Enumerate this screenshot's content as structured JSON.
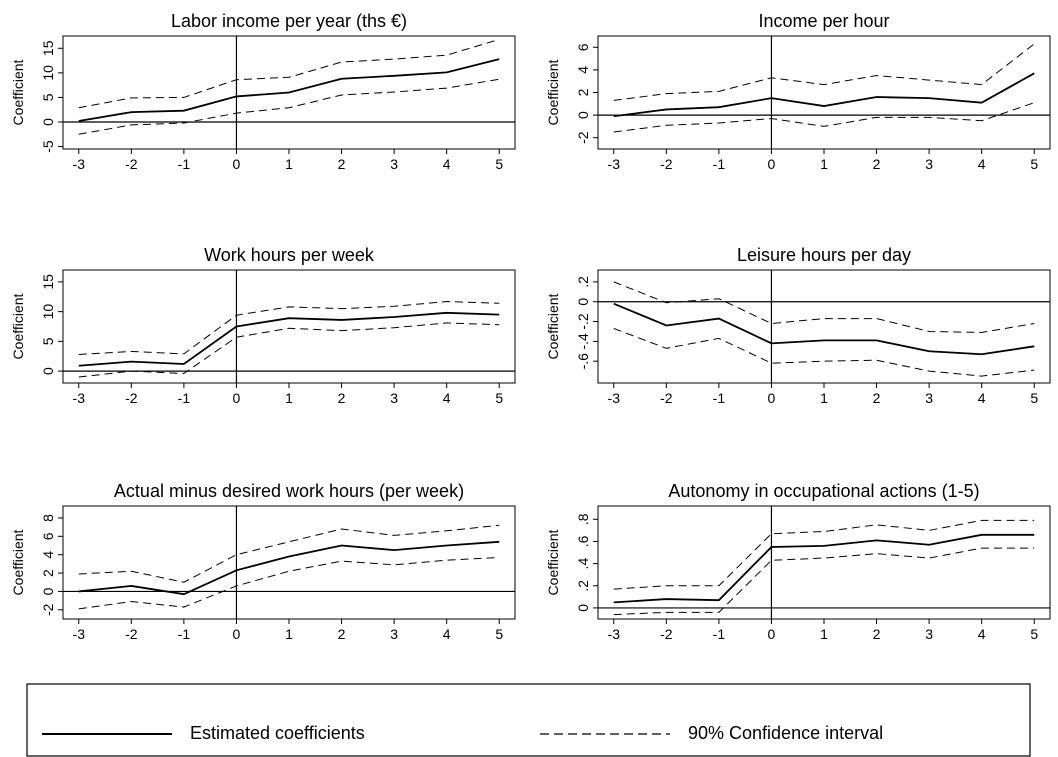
{
  "chart_data": [
    {
      "type": "line",
      "title": "Labor income per year (ths €)",
      "ylabel": "Coefficient",
      "x": [
        -3,
        -2,
        -1,
        0,
        1,
        2,
        3,
        4,
        5
      ],
      "xlim": [
        -3.3,
        5.3
      ],
      "xticks": [
        -3,
        -2,
        -1,
        0,
        1,
        2,
        3,
        4,
        5
      ],
      "ylim": [
        -5.5,
        17.5
      ],
      "yticks": [
        -5,
        0,
        5,
        10,
        15
      ],
      "reference_lines": {
        "x": 0,
        "y": 0
      },
      "coefficients": [
        0.2,
        2.0,
        2.3,
        5.2,
        6.0,
        8.8,
        9.4,
        10.1,
        12.8
      ],
      "ci_upper": [
        2.9,
        4.9,
        5.0,
        8.6,
        9.1,
        12.2,
        12.8,
        13.6,
        16.8
      ],
      "ci_lower": [
        -2.5,
        -0.6,
        -0.2,
        1.8,
        2.9,
        5.5,
        6.1,
        6.9,
        8.7
      ]
    },
    {
      "type": "line",
      "title": "Income per hour",
      "ylabel": "Coefficient",
      "x": [
        -3,
        -2,
        -1,
        0,
        1,
        2,
        3,
        4,
        5
      ],
      "xlim": [
        -3.3,
        5.3
      ],
      "xticks": [
        -3,
        -2,
        -1,
        0,
        1,
        2,
        3,
        4,
        5
      ],
      "ylim": [
        -3.0,
        7.0
      ],
      "yticks": [
        -2,
        0,
        2,
        4,
        6
      ],
      "reference_lines": {
        "x": 0,
        "y": 0
      },
      "coefficients": [
        -0.1,
        0.5,
        0.7,
        1.5,
        0.8,
        1.6,
        1.5,
        1.1,
        3.7
      ],
      "ci_upper": [
        1.3,
        1.9,
        2.1,
        3.3,
        2.7,
        3.5,
        3.1,
        2.7,
        6.3
      ],
      "ci_lower": [
        -1.5,
        -0.9,
        -0.7,
        -0.3,
        -1.0,
        -0.2,
        -0.2,
        -0.5,
        1.1
      ]
    },
    {
      "type": "line",
      "title": "Work hours per week",
      "ylabel": "Coefficient",
      "x": [
        -3,
        -2,
        -1,
        0,
        1,
        2,
        3,
        4,
        5
      ],
      "xlim": [
        -3.3,
        5.3
      ],
      "xticks": [
        -3,
        -2,
        -1,
        0,
        1,
        2,
        3,
        4,
        5
      ],
      "ylim": [
        -2.0,
        17.0
      ],
      "yticks": [
        0,
        5,
        10,
        15
      ],
      "reference_lines": {
        "x": 0,
        "y": 0
      },
      "coefficients": [
        0.9,
        1.6,
        1.2,
        7.5,
        8.9,
        8.6,
        9.1,
        9.8,
        9.5
      ],
      "ci_upper": [
        2.8,
        3.3,
        2.9,
        9.4,
        10.8,
        10.5,
        10.9,
        11.7,
        11.4
      ],
      "ci_lower": [
        -1.0,
        0.0,
        -0.4,
        5.7,
        7.2,
        6.8,
        7.3,
        8.1,
        7.8
      ]
    },
    {
      "type": "line",
      "title": "Leisure hours per day",
      "ylabel": "Coefficient",
      "x": [
        -3,
        -2,
        -1,
        0,
        1,
        2,
        3,
        4,
        5
      ],
      "xlim": [
        -3.3,
        5.3
      ],
      "xticks": [
        -3,
        -2,
        -1,
        0,
        1,
        2,
        3,
        4,
        5
      ],
      "ylim": [
        -0.82,
        0.32
      ],
      "yticks": [
        {
          "value": -0.6,
          "label": "-.6"
        },
        {
          "value": -0.4,
          "label": "-.4"
        },
        {
          "value": -0.2,
          "label": "-.2"
        },
        0,
        {
          "value": 0.2,
          "label": ".2"
        }
      ],
      "reference_lines": {
        "x": 0,
        "y": 0
      },
      "coefficients": [
        -0.02,
        -0.24,
        -0.17,
        -0.42,
        -0.39,
        -0.39,
        -0.5,
        -0.53,
        -0.45
      ],
      "ci_upper": [
        0.2,
        -0.01,
        0.03,
        -0.22,
        -0.17,
        -0.17,
        -0.3,
        -0.31,
        -0.22
      ],
      "ci_lower": [
        -0.27,
        -0.47,
        -0.37,
        -0.62,
        -0.6,
        -0.59,
        -0.7,
        -0.75,
        -0.69
      ]
    },
    {
      "type": "line",
      "title": "Actual minus desired work hours (per week)",
      "ylabel": "Coefficient",
      "x": [
        -3,
        -2,
        -1,
        0,
        1,
        2,
        3,
        4,
        5
      ],
      "xlim": [
        -3.3,
        5.3
      ],
      "xticks": [
        -3,
        -2,
        -1,
        0,
        1,
        2,
        3,
        4,
        5
      ],
      "ylim": [
        -3.0,
        9.3
      ],
      "yticks": [
        -2,
        0,
        2,
        4,
        6,
        8
      ],
      "reference_lines": {
        "x": 0,
        "y": 0
      },
      "coefficients": [
        0.0,
        0.6,
        -0.3,
        2.3,
        3.8,
        5.0,
        4.5,
        5.0,
        5.4
      ],
      "ci_upper": [
        1.9,
        2.2,
        1.0,
        4.0,
        5.4,
        6.8,
        6.1,
        6.6,
        7.2
      ],
      "ci_lower": [
        -1.9,
        -1.1,
        -1.7,
        0.6,
        2.2,
        3.3,
        2.9,
        3.4,
        3.7
      ]
    },
    {
      "type": "line",
      "title": "Autonomy in occupational actions (1-5)",
      "ylabel": "Coefficient",
      "x": [
        -3,
        -2,
        -1,
        0,
        1,
        2,
        3,
        4,
        5
      ],
      "xlim": [
        -3.3,
        5.3
      ],
      "xticks": [
        -3,
        -2,
        -1,
        0,
        1,
        2,
        3,
        4,
        5
      ],
      "ylim": [
        -0.1,
        0.92
      ],
      "yticks": [
        0,
        {
          "value": 0.2,
          "label": ".2"
        },
        {
          "value": 0.4,
          "label": ".4"
        },
        {
          "value": 0.6,
          "label": ".6"
        },
        {
          "value": 0.8,
          "label": ".8"
        }
      ],
      "reference_lines": {
        "x": 0,
        "y": 0
      },
      "coefficients": [
        0.05,
        0.08,
        0.07,
        0.55,
        0.56,
        0.61,
        0.57,
        0.66,
        0.66
      ],
      "ci_upper": [
        0.17,
        0.2,
        0.2,
        0.67,
        0.69,
        0.75,
        0.7,
        0.79,
        0.79
      ],
      "ci_lower": [
        -0.06,
        -0.04,
        -0.04,
        0.43,
        0.45,
        0.49,
        0.45,
        0.54,
        0.54
      ]
    }
  ],
  "legend": [
    "Estimated coefficients",
    "90% Confidence interval"
  ]
}
